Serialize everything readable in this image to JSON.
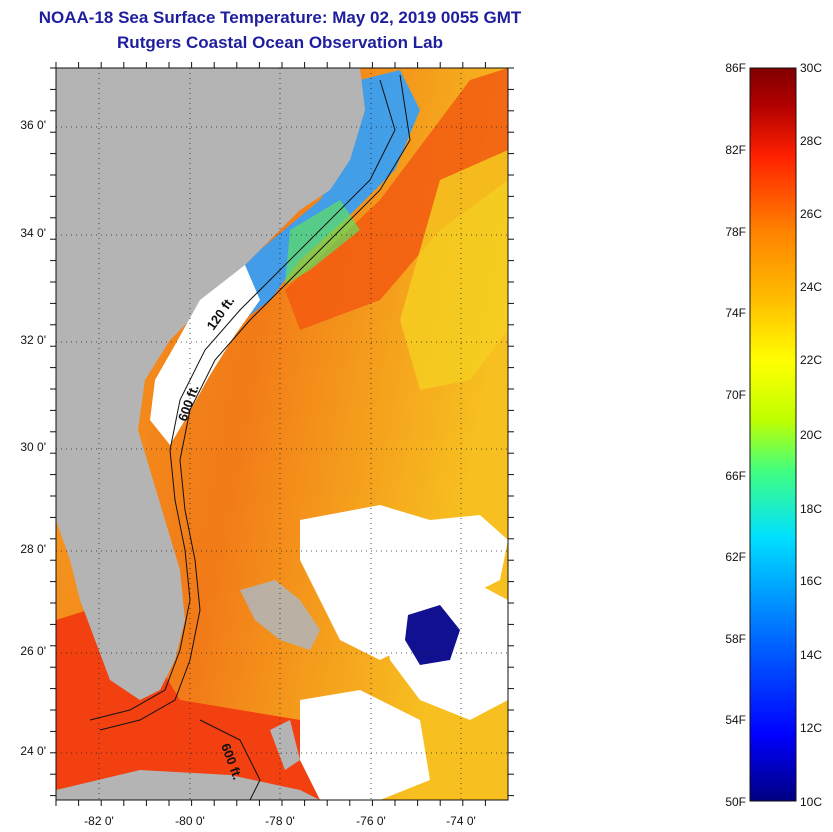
{
  "title": {
    "line1": "NOAA-18 Sea Surface Temperature:  May 02, 2019 0055 GMT",
    "line2": "Rutgers Coastal Ocean Observation Lab"
  },
  "map": {
    "lat_labels": [
      "36 0'",
      "34 0'",
      "32 0'",
      "30 0'",
      "28 0'",
      "26 0'",
      "24 0'"
    ],
    "lon_labels": [
      "-82 0'",
      "-80 0'",
      "-78 0'",
      "-76 0'",
      "-74 0'"
    ],
    "contour_labels": [
      "120 ft.",
      "600 ft.",
      "600 ft."
    ],
    "land_color": "#b4b4b4",
    "cloud_color": "#ffffff"
  },
  "colorbar": {
    "fahrenheit_labels": [
      "86F",
      "82F",
      "78F",
      "74F",
      "70F",
      "66F",
      "62F",
      "58F",
      "54F",
      "50F"
    ],
    "celsius_labels": [
      "30C",
      "28C",
      "26C",
      "24C",
      "22C",
      "20C",
      "18C",
      "16C",
      "14C",
      "12C",
      "10C"
    ],
    "colors": [
      "#000080",
      "#0000ff",
      "#0080ff",
      "#00e0ff",
      "#40ff80",
      "#c0ff00",
      "#ffff00",
      "#ffc000",
      "#ff8000",
      "#ff2000",
      "#b00000",
      "#800000"
    ]
  }
}
